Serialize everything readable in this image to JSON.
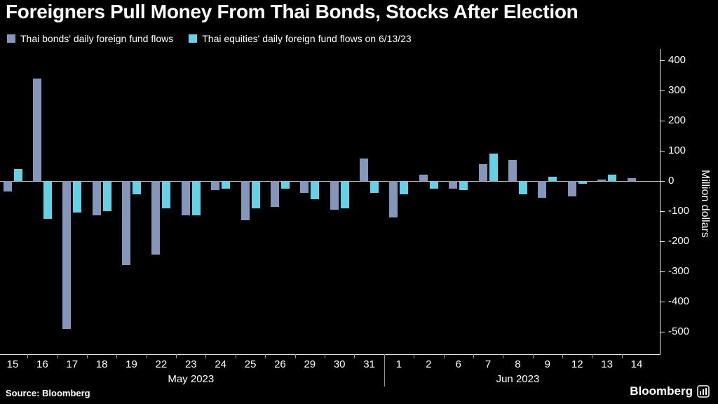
{
  "title": "Foreigners Pull Money From Thai Bonds, Stocks After Election",
  "legend": [
    {
      "label": "Thai bonds' daily foreign fund flows",
      "color": "#8496b9"
    },
    {
      "label": "Thai equities' daily foreign fund flows on 6/13/23",
      "color": "#63d2e4"
    }
  ],
  "source": "Source: Bloomberg",
  "brand": "Bloomberg",
  "chart_data": {
    "type": "bar",
    "title": "Foreigners Pull Money From Thai Bonds, Stocks After Election",
    "categories": [
      "15",
      "16",
      "17",
      "18",
      "19",
      "22",
      "23",
      "24",
      "25",
      "26",
      "29",
      "30",
      "31",
      "1",
      "2",
      "6",
      "7",
      "8",
      "9",
      "12",
      "13",
      "14"
    ],
    "month_groups": [
      {
        "label": "May 2023",
        "from": 0,
        "to": 12
      },
      {
        "label": "Jun 2023",
        "from": 13,
        "to": 21
      }
    ],
    "series": [
      {
        "name": "Thai bonds' daily foreign fund flows",
        "color": "#8496b9",
        "values": [
          -35,
          340,
          -490,
          -115,
          -280,
          -245,
          -115,
          -30,
          -130,
          -85,
          -40,
          -95,
          75,
          -120,
          20,
          -25,
          55,
          70,
          -55,
          -50,
          5,
          10
        ]
      },
      {
        "name": "Thai equities' daily foreign fund flows",
        "color": "#63d2e4",
        "values": [
          40,
          -125,
          -105,
          -100,
          -45,
          -90,
          -115,
          -25,
          -90,
          -25,
          -60,
          -90,
          -40,
          -45,
          -25,
          -30,
          90,
          -45,
          15,
          -10,
          20,
          0
        ]
      }
    ],
    "xlabel": "",
    "ylabel": "Million dollars",
    "yticks": [
      400,
      300,
      200,
      100,
      0,
      -100,
      -200,
      -300,
      -400,
      -500
    ],
    "ylim": [
      -560,
      440
    ],
    "grid": false,
    "legend_position": "top-left"
  }
}
